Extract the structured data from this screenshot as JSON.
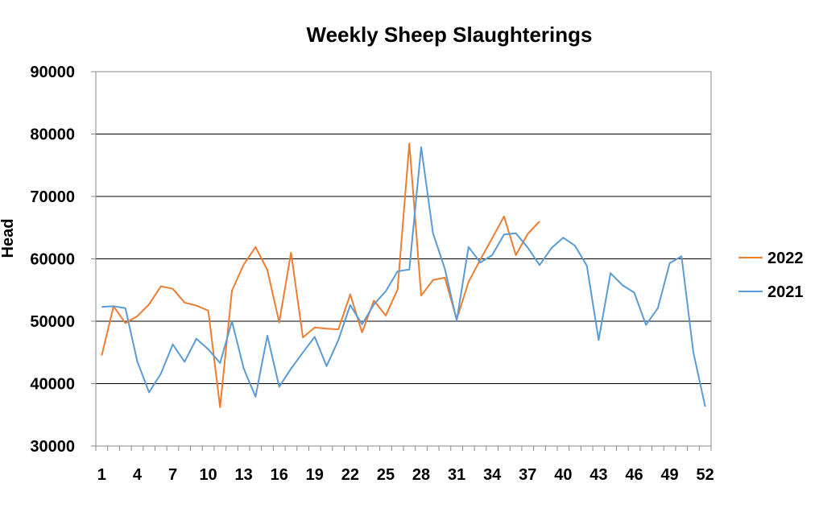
{
  "chart_data": {
    "type": "line",
    "title": "Weekly Sheep Slaughterings",
    "xlabel": "",
    "ylabel": "Head",
    "ylim": [
      30000,
      90000
    ],
    "yticks": [
      30000,
      40000,
      50000,
      60000,
      70000,
      80000,
      90000
    ],
    "ytick_labels": [
      "30000",
      "40000",
      "50000",
      "60000",
      "70000",
      "80000",
      "90000"
    ],
    "x_range": [
      1,
      52
    ],
    "xtick_labels": [
      "1",
      "4",
      "7",
      "10",
      "13",
      "16",
      "19",
      "22",
      "25",
      "28",
      "31",
      "34",
      "37",
      "40",
      "43",
      "46",
      "49",
      "52"
    ],
    "xtick_values": [
      1,
      4,
      7,
      10,
      13,
      16,
      19,
      22,
      25,
      28,
      31,
      34,
      37,
      40,
      43,
      46,
      49,
      52
    ],
    "grid": "horizontal",
    "legend_position": "right",
    "series": [
      {
        "name": "2022",
        "color": "#ED7D31",
        "values": [
          44500,
          52400,
          49700,
          50800,
          52700,
          55600,
          55200,
          53000,
          52500,
          51700,
          36200,
          54900,
          59100,
          61900,
          58200,
          49800,
          61000,
          47400,
          49000,
          48800,
          48700,
          54300,
          48200,
          53300,
          50900,
          55100,
          78500,
          54100,
          56600,
          57000,
          50300,
          56300,
          59900,
          63300,
          66800,
          60600,
          64000,
          66000
        ]
      },
      {
        "name": "2021",
        "color": "#5B9BD5",
        "values": [
          52300,
          52400,
          52100,
          43600,
          38600,
          41600,
          46300,
          43500,
          47200,
          45500,
          43300,
          50000,
          42400,
          37900,
          47700,
          39500,
          42400,
          45000,
          47500,
          42800,
          47000,
          52600,
          49500,
          52700,
          54800,
          58000,
          58300,
          77900,
          64100,
          58400,
          50100,
          61900,
          59400,
          60600,
          63900,
          64100,
          61800,
          59000,
          61700,
          63400,
          62100,
          58900,
          47000,
          57700,
          55800,
          54600,
          49400,
          52100,
          59300,
          60400,
          45000,
          36300
        ]
      }
    ]
  }
}
